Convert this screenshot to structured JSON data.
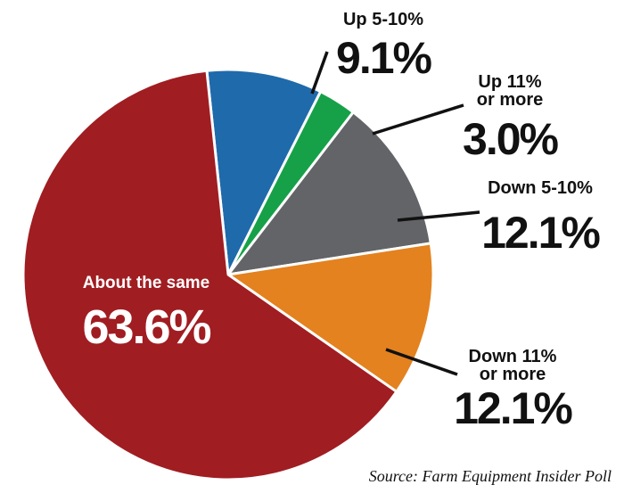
{
  "chart_data": {
    "type": "pie",
    "title": "",
    "slices": [
      {
        "label": "Up 5-10%",
        "value": 9.1,
        "value_label": "9.1%",
        "color": "#1f6aab"
      },
      {
        "label": "Up 11% or more",
        "value": 3.0,
        "value_label": "3.0%",
        "color": "#16a148"
      },
      {
        "label": "Down 5-10%",
        "value": 12.1,
        "value_label": "12.1%",
        "color": "#626467"
      },
      {
        "label": "Down 11% or more",
        "value": 12.1,
        "value_label": "12.1%",
        "color": "#e3821f"
      },
      {
        "label": "About the same",
        "value": 63.6,
        "value_label": "63.6%",
        "color": "#a01d22"
      }
    ],
    "start_angle_deg": -6,
    "direction": "clockwise",
    "legend": "none"
  },
  "source": "Source: Farm Equipment Insider Poll"
}
